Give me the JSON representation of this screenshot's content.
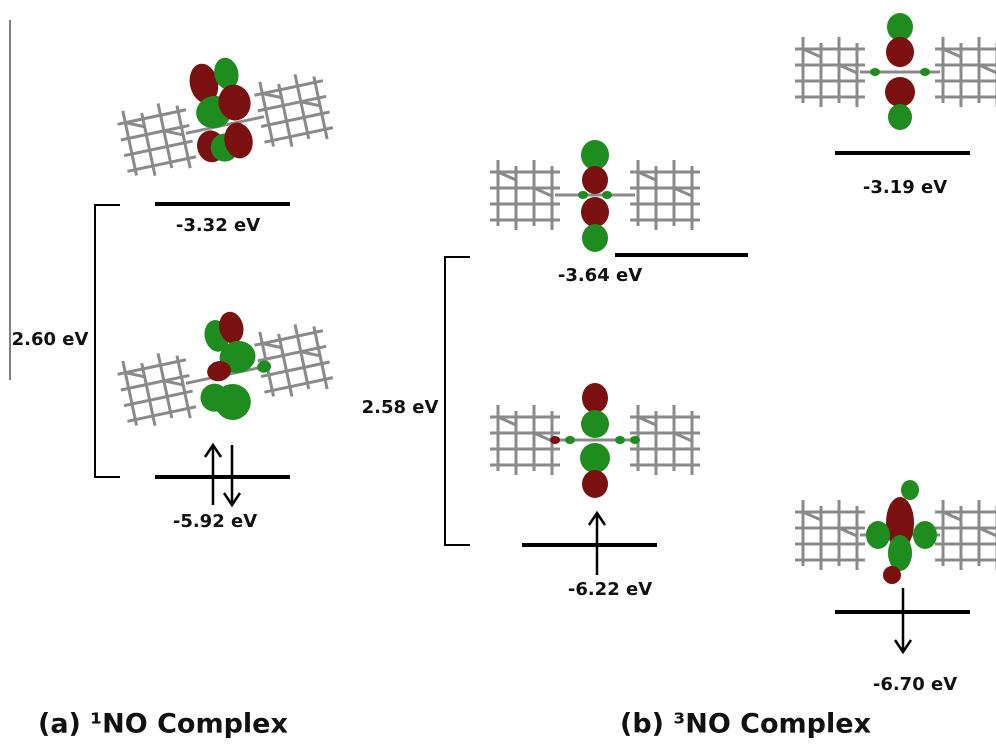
{
  "panels": [
    {
      "label": "(a) ¹NO Complex",
      "gap": "2.60 eV",
      "levels": [
        {
          "energy": "-3.32 eV"
        },
        {
          "energy": "-5.92 eV"
        }
      ]
    },
    {
      "label": "(b) ³NO Complex",
      "gap": "2.58 eV",
      "levels": [
        {
          "energy": "-3.64 eV"
        },
        {
          "energy": "-6.22 eV"
        },
        {
          "energy": "-3.19 eV"
        },
        {
          "energy": "-6.70 eV"
        }
      ]
    }
  ]
}
